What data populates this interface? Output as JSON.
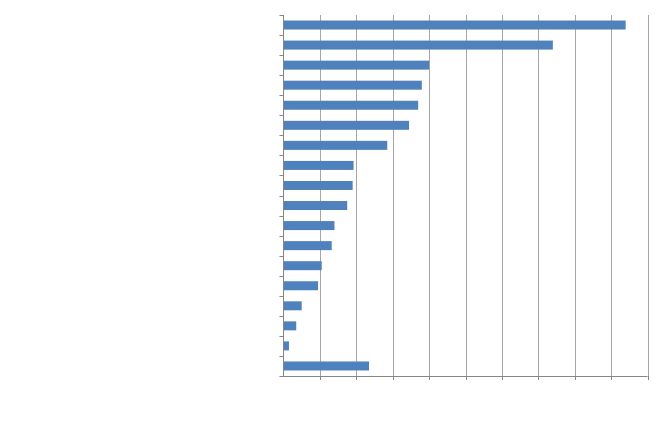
{
  "chart_data": {
    "type": "bar",
    "orientation": "horizontal",
    "title": "",
    "xlabel": "",
    "ylabel": "",
    "xlim": [
      0,
      20
    ],
    "x_major_unit": 2,
    "grid": "vertical",
    "legend": "none",
    "bar_color": "#4F81BD",
    "grid_color": "#A6A6A6",
    "axis_color": "#868686",
    "values": [
      18.8,
      14.8,
      8.0,
      7.6,
      7.4,
      6.9,
      5.7,
      3.85,
      3.8,
      3.5,
      2.8,
      2.65,
      2.1,
      1.9,
      1.0,
      0.7,
      0.3,
      4.7
    ]
  }
}
